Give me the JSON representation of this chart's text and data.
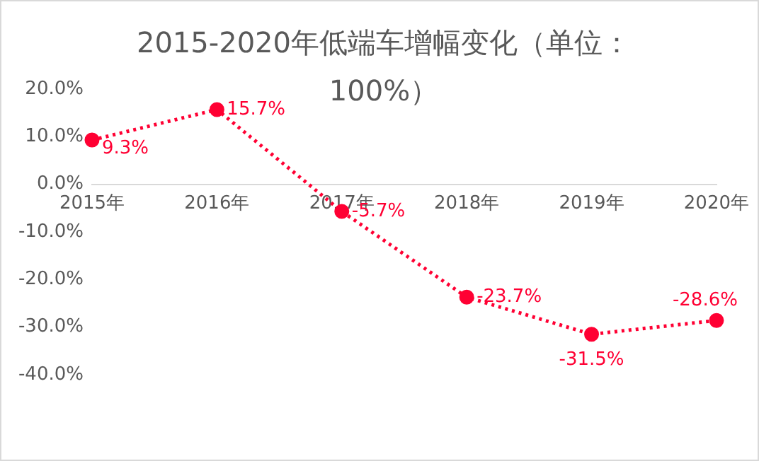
{
  "chart_data": {
    "type": "line",
    "title": "2015-2020年低端车增幅变化（单位：100%）",
    "categories": [
      "2015年",
      "2016年",
      "2017年",
      "2018年",
      "2019年",
      "2020年"
    ],
    "series": [
      {
        "color": "#ff0033",
        "values": [
          9.3,
          15.7,
          -5.7,
          -23.7,
          -31.5,
          -28.6
        ],
        "value_labels": [
          "9.3%",
          "15.7%",
          "-5.7%",
          "-23.7%",
          "-31.5%",
          "-28.6%"
        ]
      }
    ],
    "ylim": [
      -40,
      20
    ],
    "yticks": [
      {
        "value": -40,
        "label": "-40.0%"
      },
      {
        "value": -30,
        "label": "-30.0%"
      },
      {
        "value": -20,
        "label": "-20.0%"
      },
      {
        "value": -10,
        "label": "-10.0%"
      },
      {
        "value": 0,
        "label": "0.0%"
      },
      {
        "value": 10,
        "label": "10.0%"
      },
      {
        "value": 20,
        "label": "20.0%"
      }
    ],
    "grid": false,
    "legend": false,
    "marker": "circle",
    "line_style": "dotted"
  }
}
